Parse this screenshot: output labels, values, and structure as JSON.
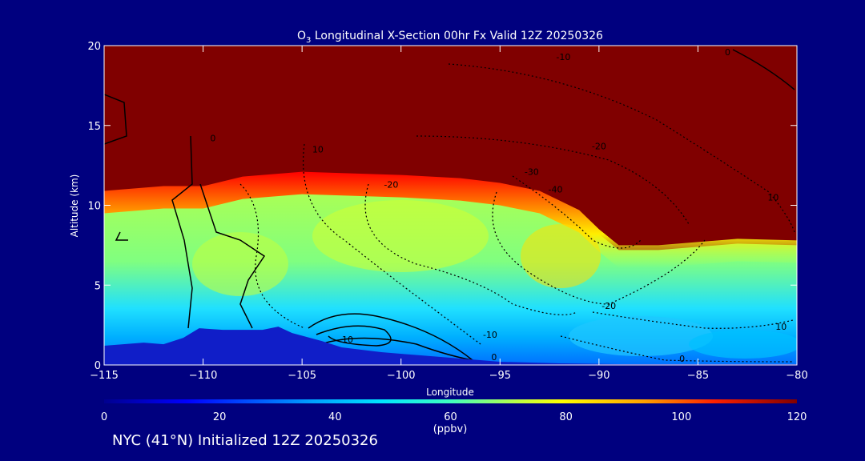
{
  "chart_data": {
    "type": "heatmap",
    "title_prefix": "O",
    "title_subscript": "3",
    "title_rest": " Longitudinal X-Section 00hr  Fx Valid 12Z 20250326",
    "xlabel": "Longitude",
    "ylabel": "Altitude (km)",
    "xlim": [
      -115,
      -80
    ],
    "ylim": [
      0,
      20
    ],
    "x_ticks": [
      -115,
      -110,
      -105,
      -100,
      -95,
      -90,
      -85,
      -80
    ],
    "x_tick_labels": [
      "−115",
      "−110",
      "−105",
      "−100",
      "−95",
      "−90",
      "−85",
      "−80"
    ],
    "y_ticks": [
      0,
      5,
      10,
      15,
      20
    ],
    "y_tick_labels": [
      "0",
      "5",
      "10",
      "15",
      "20"
    ],
    "colorbar": {
      "ticks": [
        0,
        20,
        40,
        60,
        80,
        100,
        120
      ],
      "tick_labels": [
        "0",
        "20",
        "40",
        "60",
        "80",
        "100",
        "120"
      ],
      "units": "(ppbv)",
      "range": [
        0,
        120
      ]
    },
    "tropopause_height_km": {
      "lon": [
        -115,
        -112,
        -110,
        -108,
        -105,
        -100,
        -97,
        -95,
        -93,
        -91,
        -90,
        -89,
        -87,
        -85,
        -83,
        -80
      ],
      "alt": [
        10.6,
        10.9,
        10.9,
        11.5,
        11.8,
        11.6,
        11.4,
        11.1,
        10.6,
        9.4,
        8.2,
        7.2,
        7.2,
        7.4,
        7.6,
        7.5
      ]
    },
    "terrain_height_km": {
      "lon": [
        -115,
        -113,
        -112,
        -111,
        -110.2,
        -109,
        -107,
        -106.2,
        -105.5,
        -104,
        -103,
        -101,
        -99,
        -97,
        -95,
        -92,
        -89,
        -86,
        -83,
        -80
      ],
      "alt": [
        1.2,
        1.4,
        1.3,
        1.7,
        2.3,
        2.2,
        2.2,
        2.4,
        2.0,
        1.5,
        1.1,
        0.8,
        0.6,
        0.4,
        0.2,
        0.1,
        0.05,
        0.05,
        0.05,
        0.05
      ]
    },
    "contour_labels": [
      {
        "text": "0",
        "lon": -109.5,
        "alt": 14.0
      },
      {
        "text": "0",
        "lon": -83.5,
        "alt": 19.4
      },
      {
        "text": "-10",
        "lon": -91.8,
        "alt": 19.1
      },
      {
        "text": "10",
        "lon": -104.2,
        "alt": 13.3
      },
      {
        "text": "-20",
        "lon": -90.0,
        "alt": 13.5
      },
      {
        "text": "-30",
        "lon": -93.4,
        "alt": 11.9
      },
      {
        "text": "-40",
        "lon": -92.2,
        "alt": 10.8
      },
      {
        "text": "10",
        "lon": -81.2,
        "alt": 10.3
      },
      {
        "text": "-20",
        "lon": -100.5,
        "alt": 11.1
      },
      {
        "text": "-20",
        "lon": -89.5,
        "alt": 3.5
      },
      {
        "text": "-10",
        "lon": -95.5,
        "alt": 1.7
      },
      {
        "text": "10",
        "lon": -102.7,
        "alt": 1.4
      },
      {
        "text": "0",
        "lon": -95.3,
        "alt": 0.3
      },
      {
        "text": "0",
        "lon": -85.8,
        "alt": 0.2
      },
      {
        "text": "10",
        "lon": -80.8,
        "alt": 2.2
      }
    ]
  },
  "footer": {
    "caption": "NYC (41°N) Initialized 12Z 20250326"
  },
  "colors": {
    "background": "#00007f",
    "stratosphere": "#800000",
    "terrain": "#101ec8"
  }
}
